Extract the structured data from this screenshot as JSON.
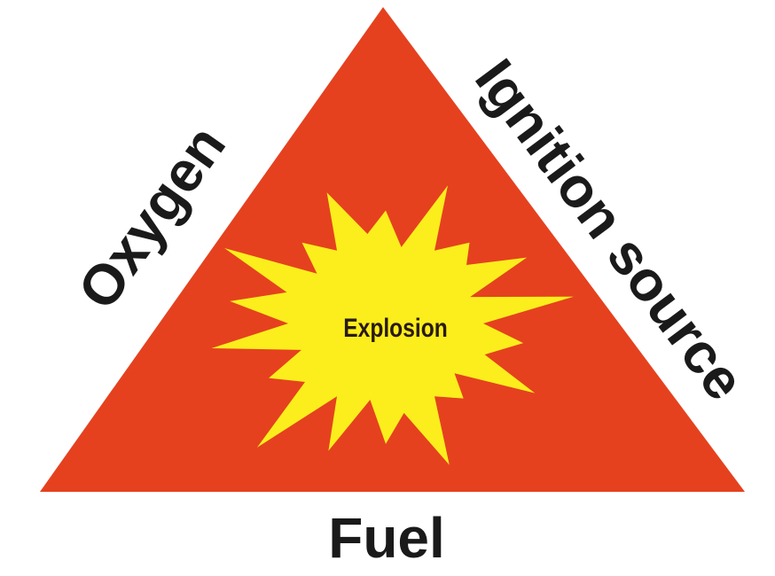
{
  "triangle": {
    "left_side": "Oxygen",
    "right_side": "Ignition source",
    "base": "Fuel",
    "center": "Explosion"
  }
}
